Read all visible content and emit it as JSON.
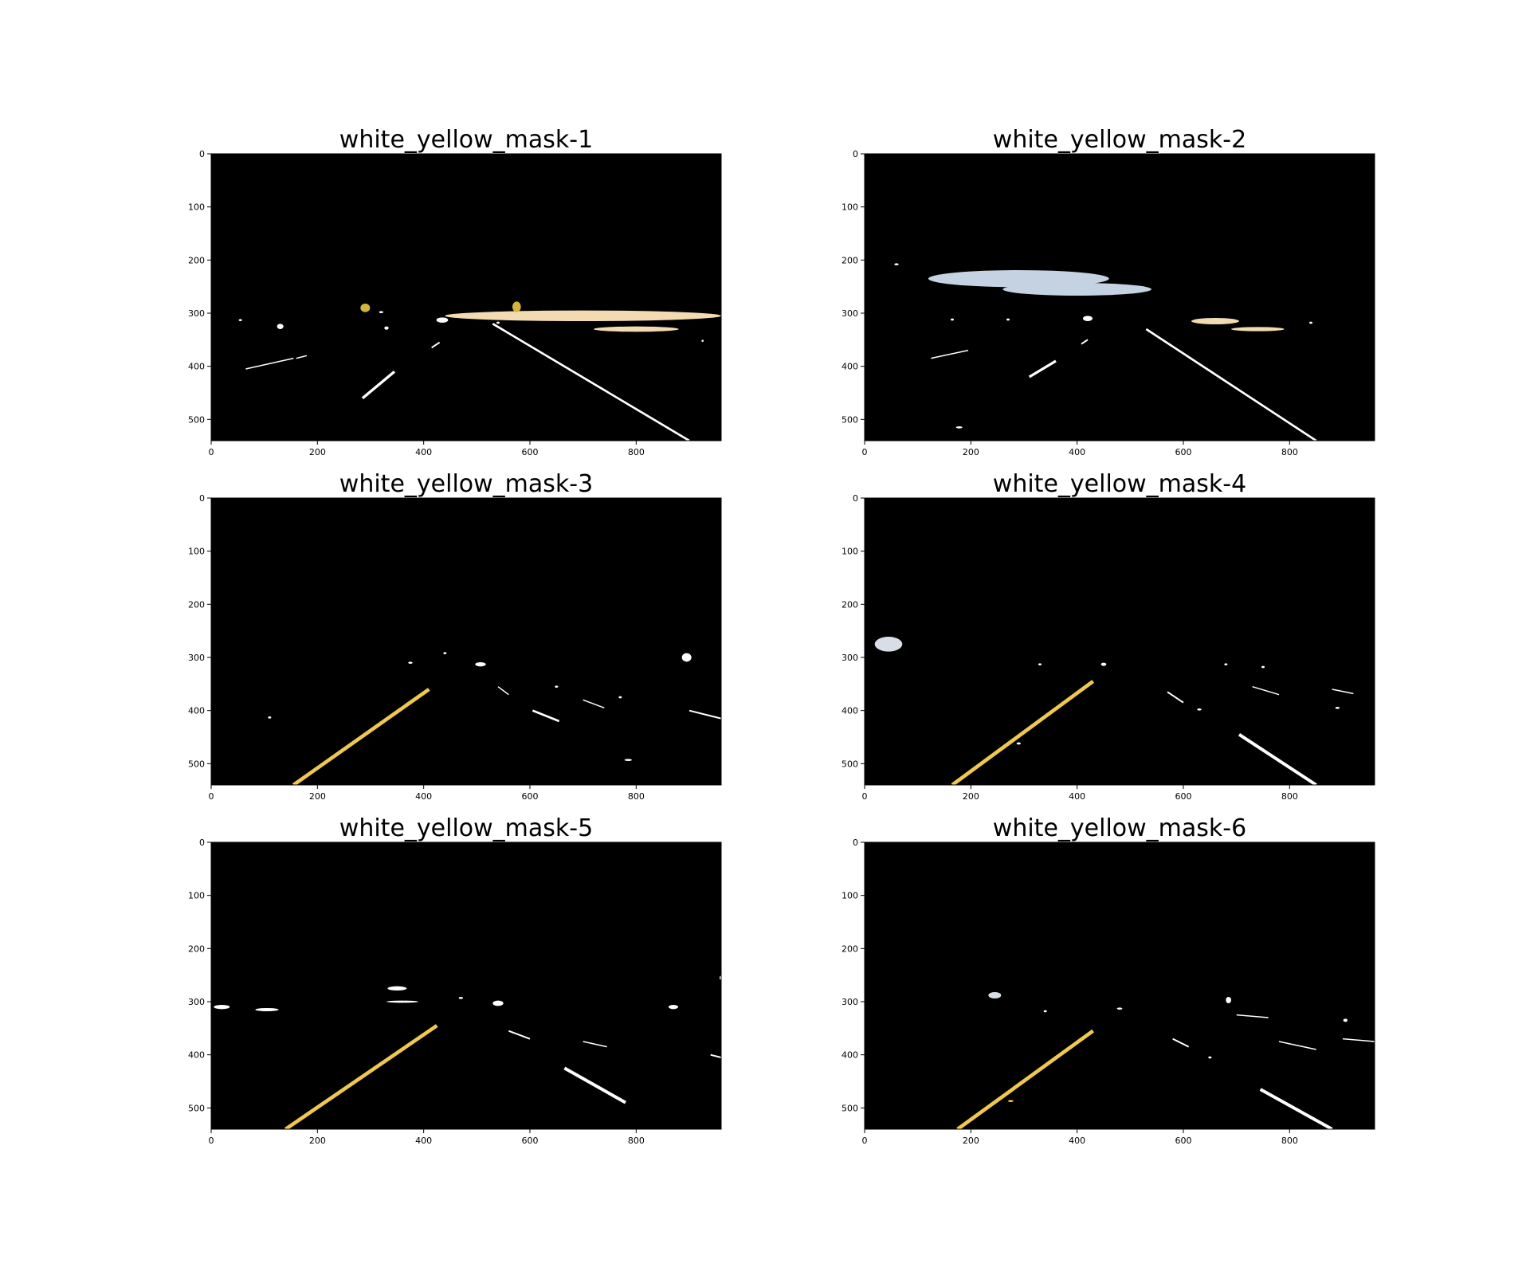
{
  "figure": {
    "background": "#ffffff",
    "plot_background": "#000000",
    "axis_color": "#000000"
  },
  "chart_data": [
    {
      "type": "image",
      "title": "white_yellow_mask-1",
      "xlim": [
        0,
        960
      ],
      "ylim": [
        540,
        0
      ],
      "xticks": [
        0,
        200,
        400,
        600,
        800
      ],
      "yticks": [
        0,
        100,
        200,
        300,
        400,
        500
      ],
      "lines": [
        {
          "color": "#ffffff",
          "points": [
            [
              530,
              320
            ],
            [
              900,
              540
            ]
          ],
          "width": 4
        },
        {
          "color": "#ffffff",
          "points": [
            [
              285,
              460
            ],
            [
              345,
              410
            ]
          ],
          "width": 5
        },
        {
          "color": "#ffffff",
          "points": [
            [
              415,
              365
            ],
            [
              430,
              355
            ]
          ],
          "width": 3
        },
        {
          "color": "#ffffff",
          "points": [
            [
              65,
              405
            ],
            [
              155,
              385
            ]
          ],
          "width": 2
        },
        {
          "color": "#ffffff",
          "points": [
            [
              160,
              385
            ],
            [
              180,
              380
            ]
          ],
          "width": 2
        }
      ],
      "blobs": [
        {
          "color": "#f2dbb0",
          "cx": 700,
          "cy": 305,
          "rx": 260,
          "ry": 10
        },
        {
          "color": "#f2dbb0",
          "cx": 800,
          "cy": 330,
          "rx": 80,
          "ry": 5
        },
        {
          "color": "#d4b43c",
          "cx": 290,
          "cy": 290,
          "rx": 9,
          "ry": 8
        },
        {
          "color": "#d4b43c",
          "cx": 575,
          "cy": 288,
          "rx": 8,
          "ry": 10
        },
        {
          "color": "#ffffff",
          "cx": 435,
          "cy": 313,
          "rx": 11,
          "ry": 5
        },
        {
          "color": "#ffffff",
          "cx": 130,
          "cy": 325,
          "rx": 6,
          "ry": 5
        },
        {
          "color": "#ffffff",
          "cx": 330,
          "cy": 328,
          "rx": 4,
          "ry": 3
        },
        {
          "color": "#ffffff",
          "cx": 55,
          "cy": 313,
          "rx": 3,
          "ry": 2
        },
        {
          "color": "#ffffff",
          "cx": 320,
          "cy": 298,
          "rx": 4,
          "ry": 2
        },
        {
          "color": "#ffffff",
          "cx": 540,
          "cy": 318,
          "rx": 3,
          "ry": 2
        },
        {
          "color": "#ffffff",
          "cx": 925,
          "cy": 352,
          "rx": 2,
          "ry": 2
        }
      ]
    },
    {
      "type": "image",
      "title": "white_yellow_mask-2",
      "xlim": [
        0,
        960
      ],
      "ylim": [
        540,
        0
      ],
      "xticks": [
        0,
        200,
        400,
        600,
        800
      ],
      "yticks": [
        0,
        100,
        200,
        300,
        400,
        500
      ],
      "lines": [
        {
          "color": "#ffffff",
          "points": [
            [
              530,
              330
            ],
            [
              850,
              540
            ]
          ],
          "width": 4
        },
        {
          "color": "#ffffff",
          "points": [
            [
              310,
              420
            ],
            [
              360,
              390
            ]
          ],
          "width": 5
        },
        {
          "color": "#ffffff",
          "points": [
            [
              408,
              358
            ],
            [
              420,
              350
            ]
          ],
          "width": 3
        },
        {
          "color": "#ffffff",
          "points": [
            [
              125,
              385
            ],
            [
              195,
              370
            ]
          ],
          "width": 2
        }
      ],
      "blobs": [
        {
          "color": "#c4d2e2",
          "cx": 290,
          "cy": 235,
          "rx": 170,
          "ry": 16
        },
        {
          "color": "#c4d2e2",
          "cx": 400,
          "cy": 255,
          "rx": 140,
          "ry": 12
        },
        {
          "color": "#f2dbb0",
          "cx": 660,
          "cy": 315,
          "rx": 45,
          "ry": 6
        },
        {
          "color": "#f2dbb0",
          "cx": 740,
          "cy": 330,
          "rx": 50,
          "ry": 4
        },
        {
          "color": "#ffffff",
          "cx": 420,
          "cy": 310,
          "rx": 9,
          "ry": 5
        },
        {
          "color": "#ffffff",
          "cx": 178,
          "cy": 515,
          "rx": 6,
          "ry": 2
        },
        {
          "color": "#ffffff",
          "cx": 60,
          "cy": 208,
          "rx": 4,
          "ry": 2
        },
        {
          "color": "#ffffff",
          "cx": 165,
          "cy": 312,
          "rx": 3,
          "ry": 2
        },
        {
          "color": "#ffffff",
          "cx": 270,
          "cy": 312,
          "rx": 3,
          "ry": 2
        },
        {
          "color": "#ffffff",
          "cx": 840,
          "cy": 318,
          "rx": 3,
          "ry": 2
        }
      ]
    },
    {
      "type": "image",
      "title": "white_yellow_mask-3",
      "xlim": [
        0,
        960
      ],
      "ylim": [
        540,
        0
      ],
      "xticks": [
        0,
        200,
        400,
        600,
        800
      ],
      "yticks": [
        0,
        100,
        200,
        300,
        400,
        500
      ],
      "lines": [
        {
          "color": "#f0c850",
          "points": [
            [
              155,
              540
            ],
            [
              410,
              360
            ]
          ],
          "width": 7
        },
        {
          "color": "#ffffff",
          "points": [
            [
              605,
              400
            ],
            [
              655,
              420
            ]
          ],
          "width": 4
        },
        {
          "color": "#ffffff",
          "points": [
            [
              900,
              400
            ],
            [
              960,
              415
            ]
          ],
          "width": 3
        },
        {
          "color": "#ffffff",
          "points": [
            [
              540,
              355
            ],
            [
              560,
              370
            ]
          ],
          "width": 2
        },
        {
          "color": "#ffffff",
          "points": [
            [
              700,
              380
            ],
            [
              740,
              395
            ]
          ],
          "width": 2
        }
      ],
      "blobs": [
        {
          "color": "#ffffff",
          "cx": 507,
          "cy": 313,
          "rx": 10,
          "ry": 4
        },
        {
          "color": "#ffffff",
          "cx": 895,
          "cy": 300,
          "rx": 9,
          "ry": 8
        },
        {
          "color": "#ffffff",
          "cx": 785,
          "cy": 493,
          "rx": 7,
          "ry": 2
        },
        {
          "color": "#ffffff",
          "cx": 375,
          "cy": 310,
          "rx": 4,
          "ry": 2
        },
        {
          "color": "#ffffff",
          "cx": 440,
          "cy": 292,
          "rx": 3,
          "ry": 2
        },
        {
          "color": "#ffffff",
          "cx": 110,
          "cy": 413,
          "rx": 3,
          "ry": 2
        },
        {
          "color": "#ffffff",
          "cx": 650,
          "cy": 355,
          "rx": 3,
          "ry": 2
        },
        {
          "color": "#ffffff",
          "cx": 770,
          "cy": 375,
          "rx": 3,
          "ry": 2
        }
      ]
    },
    {
      "type": "image",
      "title": "white_yellow_mask-4",
      "xlim": [
        0,
        960
      ],
      "ylim": [
        540,
        0
      ],
      "xticks": [
        0,
        200,
        400,
        600,
        800
      ],
      "yticks": [
        0,
        100,
        200,
        300,
        400,
        500
      ],
      "lines": [
        {
          "color": "#f0c850",
          "points": [
            [
              165,
              540
            ],
            [
              430,
              345
            ]
          ],
          "width": 7
        },
        {
          "color": "#ffffff",
          "points": [
            [
              705,
              445
            ],
            [
              850,
              540
            ]
          ],
          "width": 6
        },
        {
          "color": "#ffffff",
          "points": [
            [
              570,
              365
            ],
            [
              600,
              385
            ]
          ],
          "width": 3
        },
        {
          "color": "#ffffff",
          "points": [
            [
              730,
              355
            ],
            [
              780,
              370
            ]
          ],
          "width": 2
        },
        {
          "color": "#ffffff",
          "points": [
            [
              880,
              360
            ],
            [
              920,
              368
            ]
          ],
          "width": 2
        }
      ],
      "blobs": [
        {
          "color": "#d8dde6",
          "cx": 45,
          "cy": 275,
          "rx": 26,
          "ry": 14
        },
        {
          "color": "#ffffff",
          "cx": 450,
          "cy": 313,
          "rx": 5,
          "ry": 3
        },
        {
          "color": "#ffffff",
          "cx": 290,
          "cy": 462,
          "rx": 4,
          "ry": 2
        },
        {
          "color": "#ffffff",
          "cx": 630,
          "cy": 398,
          "rx": 4,
          "ry": 2
        },
        {
          "color": "#ffffff",
          "cx": 890,
          "cy": 395,
          "rx": 4,
          "ry": 2
        },
        {
          "color": "#ffffff",
          "cx": 330,
          "cy": 313,
          "rx": 3,
          "ry": 2
        },
        {
          "color": "#ffffff",
          "cx": 680,
          "cy": 313,
          "rx": 3,
          "ry": 2
        },
        {
          "color": "#ffffff",
          "cx": 750,
          "cy": 318,
          "rx": 3,
          "ry": 2
        }
      ]
    },
    {
      "type": "image",
      "title": "white_yellow_mask-5",
      "xlim": [
        0,
        960
      ],
      "ylim": [
        540,
        0
      ],
      "xticks": [
        0,
        200,
        400,
        600,
        800
      ],
      "yticks": [
        0,
        100,
        200,
        300,
        400,
        500
      ],
      "lines": [
        {
          "color": "#f0c850",
          "points": [
            [
              140,
              540
            ],
            [
              425,
              345
            ]
          ],
          "width": 7
        },
        {
          "color": "#ffffff",
          "points": [
            [
              665,
              425
            ],
            [
              780,
              490
            ]
          ],
          "width": 6
        },
        {
          "color": "#ffffff",
          "points": [
            [
              560,
              355
            ],
            [
              600,
              370
            ]
          ],
          "width": 3
        },
        {
          "color": "#ffffff",
          "points": [
            [
              700,
              375
            ],
            [
              745,
              385
            ]
          ],
          "width": 2
        },
        {
          "color": "#ffffff",
          "points": [
            [
              940,
              400
            ],
            [
              960,
              405
            ]
          ],
          "width": 3
        }
      ],
      "blobs": [
        {
          "color": "#ffffff",
          "cx": 350,
          "cy": 275,
          "rx": 18,
          "ry": 4
        },
        {
          "color": "#ffffff",
          "cx": 540,
          "cy": 303,
          "rx": 10,
          "ry": 5
        },
        {
          "color": "#ffffff",
          "cx": 870,
          "cy": 310,
          "rx": 9,
          "ry": 4
        },
        {
          "color": "#ffffff",
          "cx": 20,
          "cy": 310,
          "rx": 15,
          "ry": 4
        },
        {
          "color": "#ffffff",
          "cx": 105,
          "cy": 315,
          "rx": 22,
          "ry": 3
        },
        {
          "color": "#ffffff",
          "cx": 360,
          "cy": 300,
          "rx": 30,
          "ry": 2
        },
        {
          "color": "#ffffff",
          "cx": 470,
          "cy": 293,
          "rx": 4,
          "ry": 2
        },
        {
          "color": "#ffffff",
          "cx": 960,
          "cy": 255,
          "rx": 3,
          "ry": 4
        }
      ]
    },
    {
      "type": "image",
      "title": "white_yellow_mask-6",
      "xlim": [
        0,
        960
      ],
      "ylim": [
        540,
        0
      ],
      "xticks": [
        0,
        200,
        400,
        600,
        800
      ],
      "yticks": [
        0,
        100,
        200,
        300,
        400,
        500
      ],
      "lines": [
        {
          "color": "#f0c850",
          "points": [
            [
              175,
              540
            ],
            [
              430,
              355
            ]
          ],
          "width": 7
        },
        {
          "color": "#ffffff",
          "points": [
            [
              745,
              465
            ],
            [
              880,
              540
            ]
          ],
          "width": 6
        },
        {
          "color": "#ffffff",
          "points": [
            [
              580,
              370
            ],
            [
              610,
              385
            ]
          ],
          "width": 3
        },
        {
          "color": "#ffffff",
          "points": [
            [
              780,
              375
            ],
            [
              850,
              390
            ]
          ],
          "width": 2
        },
        {
          "color": "#ffffff",
          "points": [
            [
              700,
              325
            ],
            [
              760,
              330
            ]
          ],
          "width": 2
        },
        {
          "color": "#ffffff",
          "points": [
            [
              900,
              370
            ],
            [
              960,
              375
            ]
          ],
          "width": 2
        }
      ],
      "blobs": [
        {
          "color": "#d8dde6",
          "cx": 245,
          "cy": 288,
          "rx": 12,
          "ry": 6
        },
        {
          "color": "#ffffff",
          "cx": 480,
          "cy": 313,
          "rx": 5,
          "ry": 2
        },
        {
          "color": "#ffffff",
          "cx": 685,
          "cy": 297,
          "rx": 5,
          "ry": 6
        },
        {
          "color": "#ffffff",
          "cx": 905,
          "cy": 335,
          "rx": 4,
          "ry": 3
        },
        {
          "color": "#f0c850",
          "cx": 275,
          "cy": 487,
          "rx": 5,
          "ry": 2
        },
        {
          "color": "#ffffff",
          "cx": 650,
          "cy": 405,
          "rx": 3,
          "ry": 2
        },
        {
          "color": "#ffffff",
          "cx": 340,
          "cy": 318,
          "rx": 3,
          "ry": 2
        }
      ]
    }
  ]
}
